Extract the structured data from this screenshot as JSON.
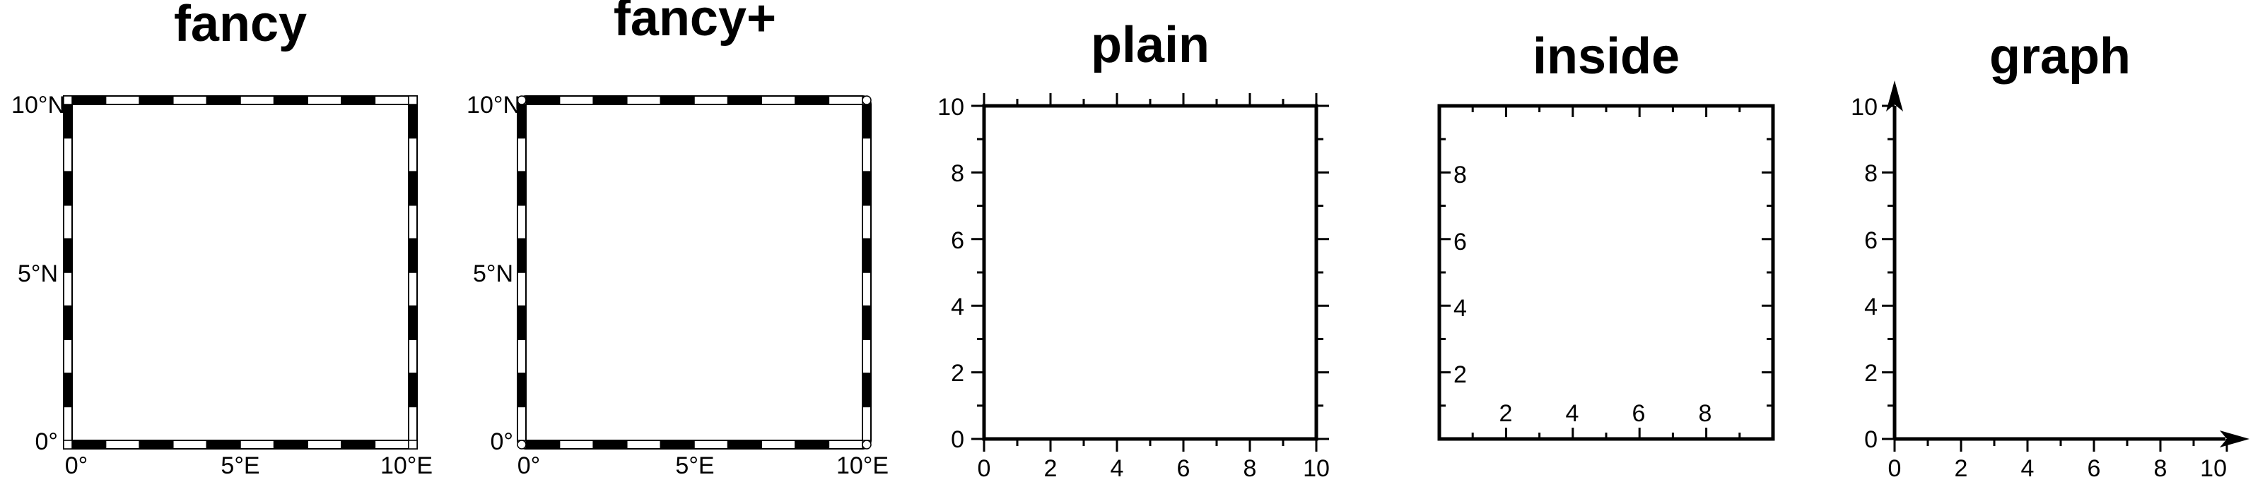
{
  "panels": [
    {
      "id": "fancy",
      "title": "fancy",
      "style": "fancy",
      "y_labels": [
        "10°N",
        "5°N",
        "0°"
      ],
      "x_labels": [
        "0°",
        "5°E",
        "10°E"
      ]
    },
    {
      "id": "fancy-plus",
      "title": "fancy+",
      "style": "fancy+",
      "y_labels": [
        "10°N",
        "5°N",
        "0°"
      ],
      "x_labels": [
        "0°",
        "5°E",
        "10°E"
      ]
    },
    {
      "id": "plain",
      "title": "plain",
      "style": "plain",
      "y_labels": [
        "10",
        "8",
        "6",
        "4",
        "2",
        "0"
      ],
      "x_labels": [
        "0",
        "2",
        "4",
        "6",
        "8",
        "10"
      ]
    },
    {
      "id": "inside",
      "title": "inside",
      "style": "inside",
      "y_labels": [
        "8",
        "6",
        "4",
        "2"
      ],
      "x_labels": [
        "2",
        "4",
        "6",
        "8"
      ]
    },
    {
      "id": "graph",
      "title": "graph",
      "style": "graph",
      "y_labels": [
        "10",
        "8",
        "6",
        "4",
        "2",
        "0"
      ],
      "x_labels": [
        "0",
        "2",
        "4",
        "6",
        "8",
        "10"
      ]
    }
  ],
  "colors": {
    "frame": "#000000",
    "background": "#ffffff"
  }
}
